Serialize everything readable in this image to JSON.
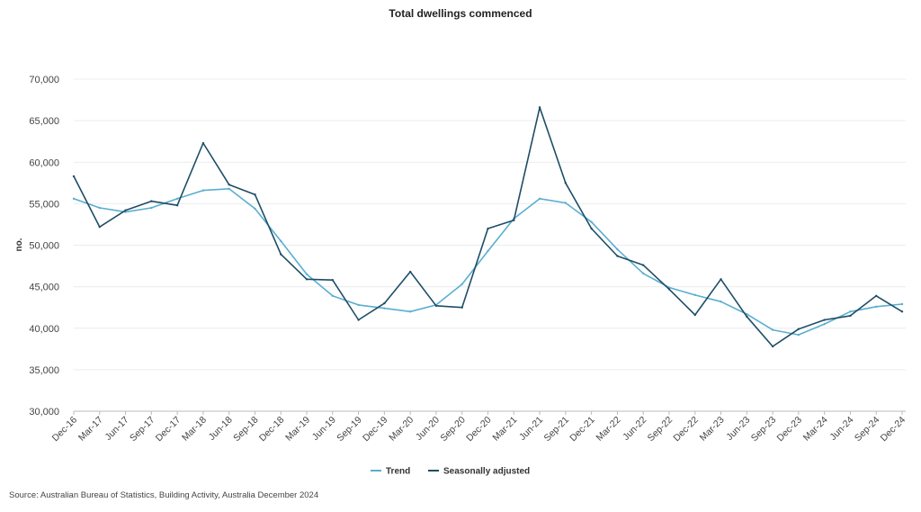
{
  "chart_data": {
    "type": "line",
    "title": "Total dwellings commenced",
    "ylabel": "no.",
    "xlabel": "",
    "ylim": [
      30000,
      70000
    ],
    "yticks": [
      30000,
      35000,
      40000,
      45000,
      50000,
      55000,
      60000,
      65000,
      70000
    ],
    "ytick_labels": [
      "30,000",
      "35,000",
      "40,000",
      "45,000",
      "50,000",
      "55,000",
      "60,000",
      "65,000",
      "70,000"
    ],
    "categories": [
      "Dec-16",
      "Mar-17",
      "Jun-17",
      "Sep-17",
      "Dec-17",
      "Mar-18",
      "Jun-18",
      "Sep-18",
      "Dec-18",
      "Mar-19",
      "Jun-19",
      "Sep-19",
      "Dec-19",
      "Mar-20",
      "Jun-20",
      "Sep-20",
      "Dec-20",
      "Mar-21",
      "Jun-21",
      "Sep-21",
      "Dec-21",
      "Mar-22",
      "Jun-22",
      "Sep-22",
      "Dec-22",
      "Mar-23",
      "Jun-23",
      "Sep-23",
      "Dec-23",
      "Mar-24",
      "Jun-24",
      "Sep-24",
      "Dec-24"
    ],
    "series": [
      {
        "name": "Trend",
        "color": "#5aaed0",
        "values": [
          55600,
          54500,
          54000,
          54500,
          55600,
          56600,
          56800,
          54400,
          50500,
          46500,
          43900,
          42800,
          42400,
          42000,
          42800,
          45300,
          49300,
          53200,
          55600,
          55100,
          52800,
          49500,
          46600,
          44900,
          44000,
          43200,
          41700,
          39800,
          39200,
          40500,
          42000,
          42600,
          42900
        ]
      },
      {
        "name": "Seasonally adjusted",
        "color": "#1e4d66",
        "values": [
          58300,
          52200,
          54200,
          55300,
          54800,
          62300,
          57300,
          56100,
          48900,
          45900,
          45800,
          41000,
          43000,
          46800,
          42700,
          42500,
          52000,
          53000,
          66600,
          57500,
          52000,
          48700,
          47600,
          44700,
          41600,
          45900,
          41400,
          37800,
          39900,
          41000,
          41500,
          43900,
          42000
        ]
      }
    ],
    "grid": true,
    "legend": "bottom-center"
  },
  "source": "Source: Australian Bureau of Statistics, Building Activity, Australia December 2024"
}
